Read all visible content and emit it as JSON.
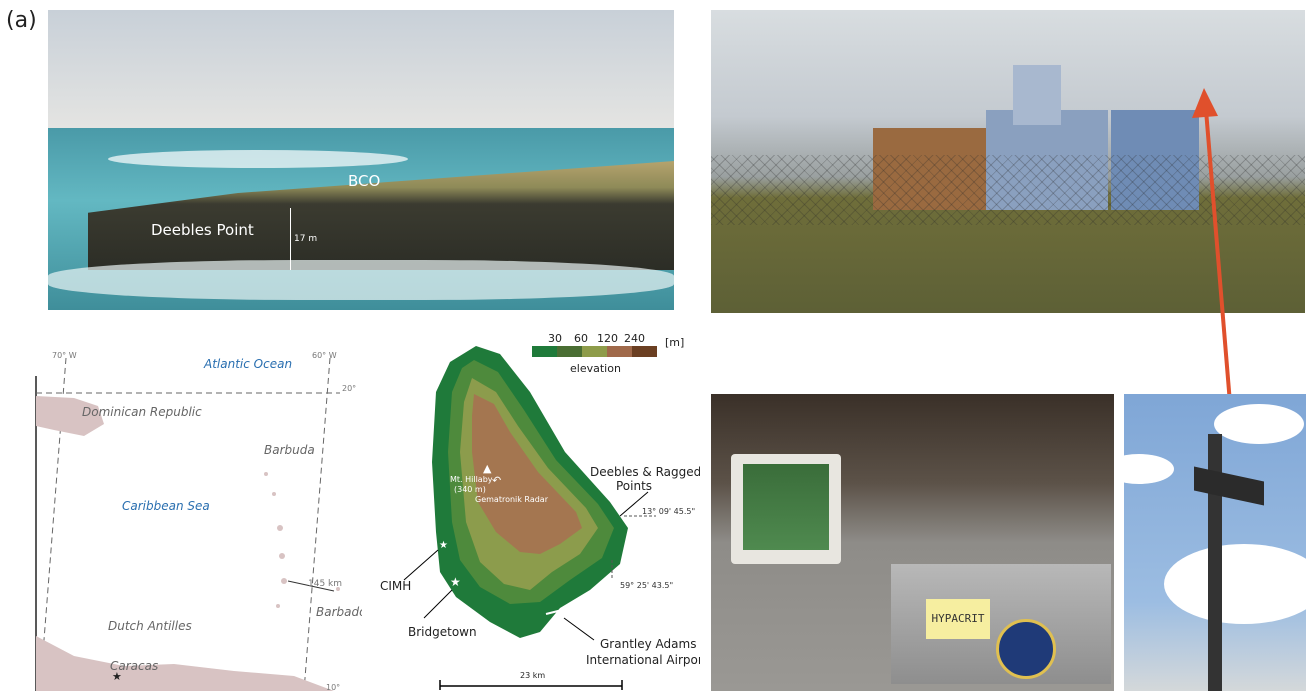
{
  "panel_label": "(a)",
  "coast_photo": {
    "site_label": "BCO",
    "point_label": "Deebles Point",
    "height_label": "17 m"
  },
  "lab_photo": {
    "sign_text": "HYPACRIT"
  },
  "map": {
    "lon_labels": [
      "70° W",
      "60° W"
    ],
    "lat_labels": [
      "20°",
      "10°"
    ],
    "seas": [
      "Atlantic Ocean",
      "Caribbean Sea"
    ],
    "places": [
      "Dominican Republic",
      "Barbuda",
      "Barbados",
      "Dutch Antilles",
      "Caracas"
    ],
    "distance": "145 km"
  },
  "barbados": {
    "legend_ticks": [
      "30",
      "60",
      "120",
      "240"
    ],
    "legend_unit": "[m]",
    "legend_title": "elevation",
    "legend_colors": [
      "#1f7a3a",
      "#4a6e33",
      "#8e9c4a",
      "#a0694a",
      "#6b3f22"
    ],
    "elevation_colors": [
      "#1f7a3a",
      "#4e8a3c",
      "#8c9c4c",
      "#a47650"
    ],
    "mountain": "Mt. Hillaby",
    "mountain_height": "(340 m)",
    "radar": "Gematronik Radar",
    "points": "Deebles & Ragged",
    "points2": "Points",
    "lat": "13° 09' 45.5\"",
    "lon": "59° 25' 43.5\"",
    "cimh": "CIMH",
    "bridgetown": "Bridgetown",
    "airport1": "Grantley Adams",
    "airport2": "International Airport",
    "scale": "23 km"
  }
}
